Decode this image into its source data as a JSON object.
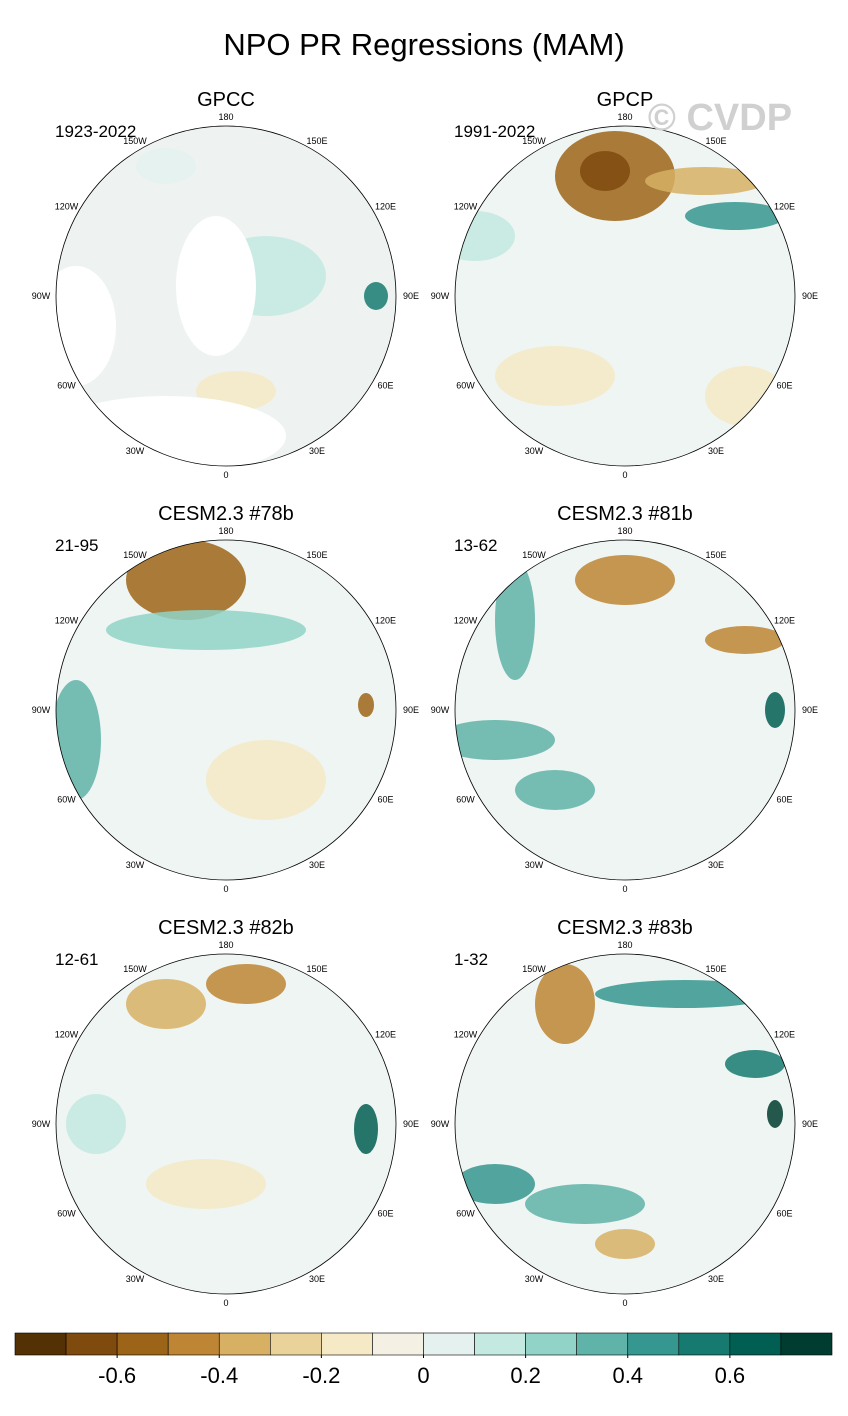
{
  "title": "NPO PR Regressions (MAM)",
  "watermark": "© CVDP",
  "panels": [
    {
      "title": "GPCC",
      "period": "1923-2022"
    },
    {
      "title": "GPCP",
      "period": "1991-2022"
    },
    {
      "title": "CESM2.3 #78b",
      "period": "21-95"
    },
    {
      "title": "CESM2.3 #81b",
      "period": "13-62"
    },
    {
      "title": "CESM2.3 #82b",
      "period": "12-61"
    },
    {
      "title": "CESM2.3 #83b",
      "period": "1-32"
    }
  ],
  "lon_labels": [
    {
      "value": 180,
      "label": "180"
    },
    {
      "value": 150,
      "label": "150E"
    },
    {
      "value": 120,
      "label": "120E"
    },
    {
      "value": 90,
      "label": "90E"
    },
    {
      "value": 60,
      "label": "60E"
    },
    {
      "value": 30,
      "label": "30E"
    },
    {
      "value": 0,
      "label": "0"
    },
    {
      "value": -30,
      "label": "30W"
    },
    {
      "value": -60,
      "label": "60W"
    },
    {
      "value": -90,
      "label": "90W"
    },
    {
      "value": -120,
      "label": "120W"
    },
    {
      "value": -150,
      "label": "150W"
    }
  ],
  "colorbar": {
    "colors": [
      "#543005",
      "#7f4a0e",
      "#9c6418",
      "#bd8534",
      "#d7b064",
      "#e9d39a",
      "#f5e9c6",
      "#f5f0e4",
      "#e4f1ef",
      "#c3e9e1",
      "#91d3c7",
      "#5fb3a8",
      "#35978f",
      "#167a70",
      "#015e52",
      "#003c30"
    ],
    "lim": [
      -0.8,
      0.8
    ],
    "ticks": [
      -0.6,
      -0.4,
      -0.2,
      0,
      0.2,
      0.4,
      0.6
    ]
  }
}
